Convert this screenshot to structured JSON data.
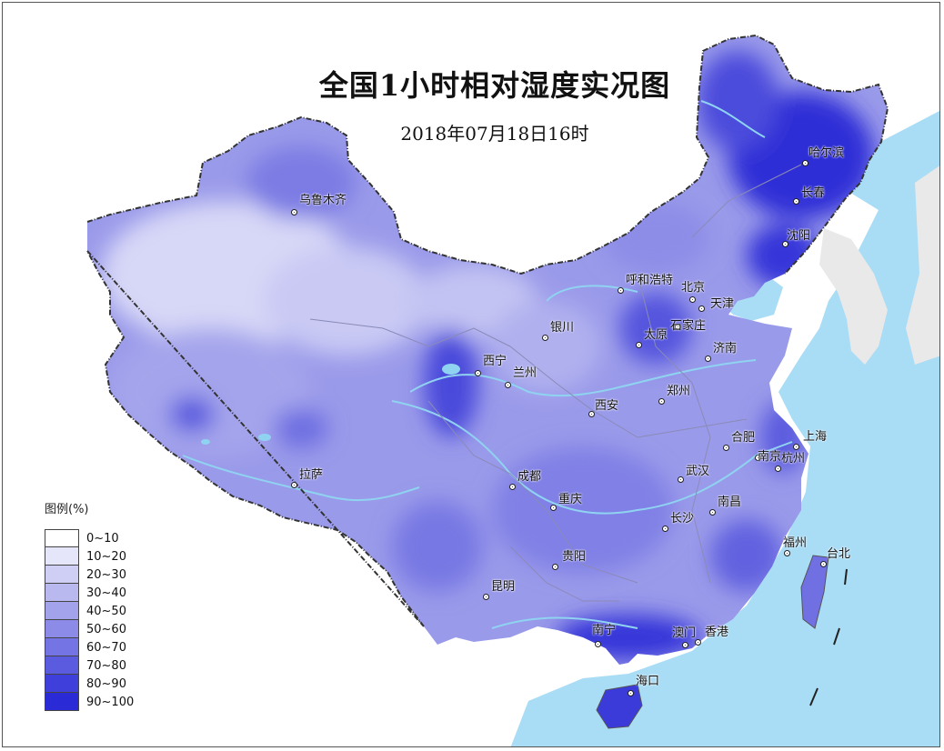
{
  "title": "全国1小时相对湿度实况图",
  "subtitle": "2018年07月18日16时",
  "legend": {
    "title": "图例(%)",
    "items": [
      {
        "label": "0~10",
        "color": "#ffffff"
      },
      {
        "label": "10~20",
        "color": "#e6e6fb"
      },
      {
        "label": "20~30",
        "color": "#cfcff5"
      },
      {
        "label": "30~40",
        "color": "#b9b9f0"
      },
      {
        "label": "40~50",
        "color": "#a3a3ec"
      },
      {
        "label": "50~60",
        "color": "#8c8ce8"
      },
      {
        "label": "60~70",
        "color": "#7474e4"
      },
      {
        "label": "70~80",
        "color": "#5b5bdf"
      },
      {
        "label": "80~90",
        "color": "#3f3fdb"
      },
      {
        "label": "90~100",
        "color": "#2a2ad6"
      }
    ]
  },
  "colors": {
    "ocean": "#a9dcf5",
    "land_outside": "#ffffff",
    "neighbor_land": "#e9e9e9",
    "rivers": "#8fd3f0",
    "border": "#333333"
  },
  "cities": [
    {
      "name": "乌鲁木齐",
      "marker": "city-marker-icon"
    },
    {
      "name": "哈尔滨",
      "marker": "city-marker-icon"
    },
    {
      "name": "长春",
      "marker": "city-marker-icon"
    },
    {
      "name": "沈阳",
      "marker": "city-marker-icon"
    },
    {
      "name": "呼和浩特",
      "marker": "city-marker-icon"
    },
    {
      "name": "北京",
      "marker": "city-marker-icon"
    },
    {
      "name": "天津",
      "marker": "city-marker-icon"
    },
    {
      "name": "石家庄",
      "marker": "city-marker-icon"
    },
    {
      "name": "太原",
      "marker": "city-marker-icon"
    },
    {
      "name": "银川",
      "marker": "city-marker-icon"
    },
    {
      "name": "济南",
      "marker": "city-marker-icon"
    },
    {
      "name": "西宁",
      "marker": "city-marker-icon"
    },
    {
      "name": "兰州",
      "marker": "city-marker-icon"
    },
    {
      "name": "郑州",
      "marker": "city-marker-icon"
    },
    {
      "name": "西安",
      "marker": "city-marker-icon"
    },
    {
      "name": "合肥",
      "marker": "city-marker-icon"
    },
    {
      "name": "上海",
      "marker": "city-marker-icon"
    },
    {
      "name": "南京",
      "marker": "city-marker-icon"
    },
    {
      "name": "杭州",
      "marker": "city-marker-icon"
    },
    {
      "name": "拉萨",
      "marker": "city-marker-icon"
    },
    {
      "name": "成都",
      "marker": "city-marker-icon"
    },
    {
      "name": "武汉",
      "marker": "city-marker-icon"
    },
    {
      "name": "重庆",
      "marker": "city-marker-icon"
    },
    {
      "name": "南昌",
      "marker": "city-marker-icon"
    },
    {
      "name": "长沙",
      "marker": "city-marker-icon"
    },
    {
      "name": "福州",
      "marker": "city-marker-icon"
    },
    {
      "name": "台北",
      "marker": "city-marker-icon"
    },
    {
      "name": "贵阳",
      "marker": "city-marker-icon"
    },
    {
      "name": "昆明",
      "marker": "city-marker-icon"
    },
    {
      "name": "南宁",
      "marker": "city-marker-icon"
    },
    {
      "name": "澳门",
      "marker": "city-marker-icon"
    },
    {
      "name": "香港",
      "marker": "city-marker-icon"
    },
    {
      "name": "海口",
      "marker": "city-marker-icon"
    }
  ]
}
